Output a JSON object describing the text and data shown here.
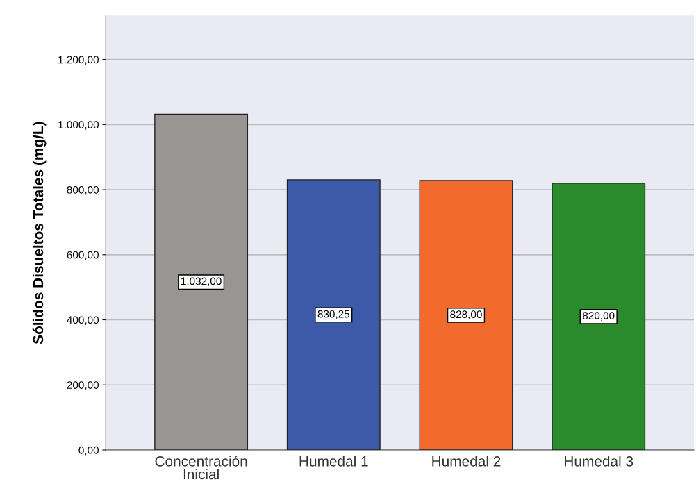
{
  "chart_data": {
    "type": "bar",
    "ylabel": "Sólidos Disueltos Totales (mg/L)",
    "categories": [
      "Concentración\nInicial",
      "Humedal 1",
      "Humedal 2",
      "Humedal 3"
    ],
    "values": [
      1032,
      830.25,
      828,
      820
    ],
    "colors": [
      "#989593",
      "#3d5aa8",
      "#f26b2c",
      "#2a8a2c"
    ],
    "value_labels": [
      "1.032,00",
      "830,25",
      "828,00",
      "820,00"
    ],
    "ylim": [
      0,
      1335
    ],
    "yticks": [
      {
        "value": 0,
        "label": "0,00"
      },
      {
        "value": 200,
        "label": "200,00"
      },
      {
        "value": 400,
        "label": "400,00"
      },
      {
        "value": 600,
        "label": "600,00"
      },
      {
        "value": 800,
        "label": "800,00"
      },
      {
        "value": 1000,
        "label": "1.000,00"
      },
      {
        "value": 1200,
        "label": "1.200,00"
      }
    ],
    "grid": "y"
  }
}
